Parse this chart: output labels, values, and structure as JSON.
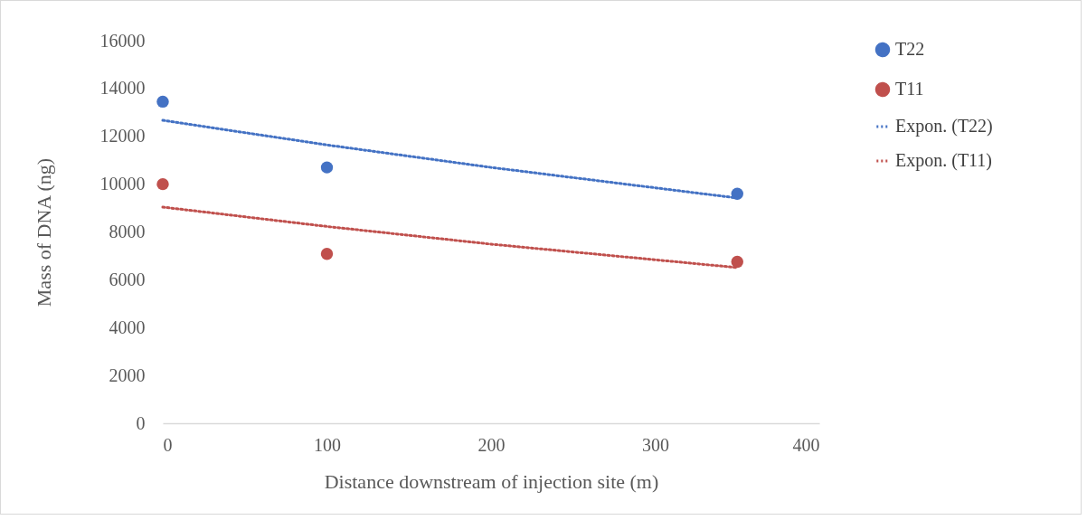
{
  "chart_data": {
    "type": "scatter",
    "xlabel": "Distance downstream of injection site (m)",
    "ylabel": "Mass of DNA (ng)",
    "xlim": [
      0,
      400
    ],
    "xticks": [
      0,
      100,
      200,
      300,
      400
    ],
    "ylim": [
      0,
      16000
    ],
    "yticks": [
      0,
      2000,
      4000,
      6000,
      8000,
      10000,
      12000,
      14000,
      16000
    ],
    "grid": false,
    "legend": "right",
    "series": [
      {
        "name": "T22",
        "marker": "circle",
        "color": "#4472c4",
        "x": [
          0,
          100,
          350
        ],
        "values": [
          13450,
          10700,
          9600
        ]
      },
      {
        "name": "T11",
        "marker": "circle",
        "color": "#c0504d",
        "x": [
          0,
          100,
          350
        ],
        "values": [
          10000,
          7080,
          6750
        ]
      },
      {
        "name": "Expon. (T22)",
        "type": "line",
        "line_style": "dotted",
        "color": "#4472c4",
        "x": [
          0,
          100,
          200,
          350
        ],
        "values": [
          12670,
          11640,
          10700,
          9420
        ]
      },
      {
        "name": "Expon. (T11)",
        "type": "line",
        "line_style": "dotted",
        "color": "#c0504d",
        "x": [
          0,
          100,
          200,
          350
        ],
        "values": [
          9040,
          8230,
          7490,
          6510
        ]
      }
    ]
  }
}
